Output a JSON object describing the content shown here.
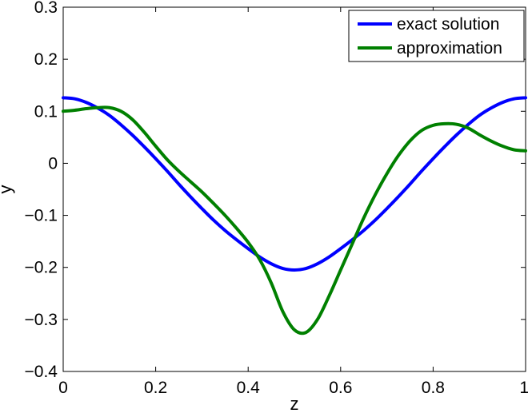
{
  "chart_data": {
    "type": "line",
    "title": "",
    "xlabel": "z",
    "ylabel": "y",
    "xlim": [
      0,
      1
    ],
    "ylim": [
      -0.4,
      0.3
    ],
    "xticks": [
      0,
      0.2,
      0.4,
      0.6,
      0.8,
      1
    ],
    "xtick_labels": [
      "0",
      "0.2",
      "0.4",
      "0.6",
      "0.8",
      "1"
    ],
    "yticks": [
      -0.4,
      -0.3,
      -0.2,
      -0.1,
      0,
      0.1,
      0.2,
      0.3
    ],
    "ytick_labels": [
      "−0.4",
      "−0.3",
      "−0.2",
      "−0.1",
      "0",
      "0.1",
      "0.2",
      "0.3"
    ],
    "grid": false,
    "legend_position": "top-right",
    "series": [
      {
        "name": "exact solution",
        "color": "#0000ff",
        "x": [
          0,
          0.025,
          0.05,
          0.075,
          0.1,
          0.125,
          0.15,
          0.175,
          0.2,
          0.225,
          0.25,
          0.275,
          0.3,
          0.325,
          0.35,
          0.375,
          0.4,
          0.425,
          0.45,
          0.475,
          0.5,
          0.525,
          0.55,
          0.575,
          0.6,
          0.625,
          0.65,
          0.675,
          0.7,
          0.725,
          0.75,
          0.775,
          0.8,
          0.825,
          0.85,
          0.875,
          0.9,
          0.925,
          0.95,
          0.975,
          1
        ],
        "y": [
          0.126,
          0.124,
          0.117,
          0.106,
          0.092,
          0.074,
          0.054,
          0.032,
          0.009,
          -0.015,
          -0.04,
          -0.064,
          -0.087,
          -0.109,
          -0.129,
          -0.147,
          -0.164,
          -0.18,
          -0.193,
          -0.202,
          -0.205,
          -0.202,
          -0.193,
          -0.18,
          -0.164,
          -0.147,
          -0.129,
          -0.109,
          -0.087,
          -0.064,
          -0.04,
          -0.015,
          0.009,
          0.032,
          0.054,
          0.074,
          0.092,
          0.106,
          0.117,
          0.124,
          0.126
        ]
      },
      {
        "name": "approximation",
        "color": "#008000",
        "x": [
          0,
          0.025,
          0.05,
          0.075,
          0.1,
          0.125,
          0.15,
          0.175,
          0.2,
          0.225,
          0.25,
          0.275,
          0.3,
          0.325,
          0.35,
          0.375,
          0.4,
          0.425,
          0.45,
          0.475,
          0.5,
          0.525,
          0.55,
          0.575,
          0.6,
          0.625,
          0.65,
          0.675,
          0.7,
          0.725,
          0.75,
          0.775,
          0.8,
          0.825,
          0.85,
          0.875,
          0.9,
          0.925,
          0.95,
          0.975,
          1
        ],
        "y": [
          0.1,
          0.102,
          0.105,
          0.107,
          0.107,
          0.1,
          0.084,
          0.06,
          0.033,
          0.007,
          -0.015,
          -0.035,
          -0.055,
          -0.077,
          -0.1,
          -0.125,
          -0.152,
          -0.185,
          -0.23,
          -0.285,
          -0.32,
          -0.325,
          -0.3,
          -0.255,
          -0.205,
          -0.155,
          -0.105,
          -0.06,
          -0.02,
          0.015,
          0.043,
          0.063,
          0.073,
          0.076,
          0.075,
          0.068,
          0.055,
          0.043,
          0.033,
          0.026,
          0.024
        ]
      }
    ]
  }
}
